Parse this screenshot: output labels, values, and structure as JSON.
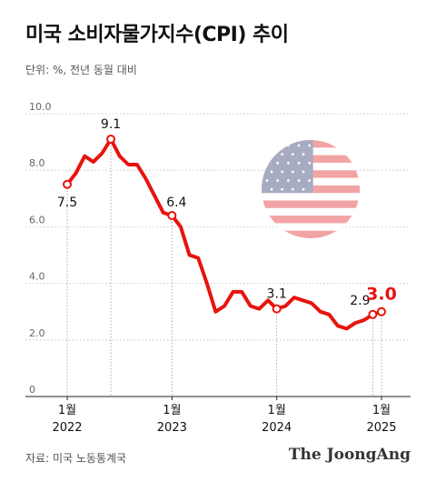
{
  "header": {
    "title": "미국 소비자물가지수(CPI) 추이",
    "unit": "단위: %, 전년 동월 대비"
  },
  "footer": {
    "source": "자료: 미국 노동통계국",
    "publisher": "The JoongAng"
  },
  "colors": {
    "line": "#e8130d",
    "grid": "#bbbbbb",
    "axis_text": "#666666",
    "flag_red": "#f2a4a4",
    "flag_blue": "#a8acc2"
  },
  "icons": [
    "us-flag-circle-icon"
  ],
  "chart_data": {
    "type": "line",
    "title": "미국 소비자물가지수(CPI) 추이",
    "xlabel": "",
    "ylabel": "",
    "ylim": [
      0,
      10
    ],
    "yticks": [
      "0",
      "2.0",
      "4.0",
      "6.0",
      "8.0",
      "10.0"
    ],
    "grid": true,
    "x_tick_labels": [
      {
        "month": "1월",
        "year": "2022"
      },
      {
        "month": "1월",
        "year": "2023"
      },
      {
        "month": "1월",
        "year": "2024"
      },
      {
        "month": "1월",
        "year": "2025"
      }
    ],
    "x": [
      "2022-01",
      "2022-02",
      "2022-03",
      "2022-04",
      "2022-05",
      "2022-06",
      "2022-07",
      "2022-08",
      "2022-09",
      "2022-10",
      "2022-11",
      "2022-12",
      "2023-01",
      "2023-02",
      "2023-03",
      "2023-04",
      "2023-05",
      "2023-06",
      "2023-07",
      "2023-08",
      "2023-09",
      "2023-10",
      "2023-11",
      "2023-12",
      "2024-01",
      "2024-02",
      "2024-03",
      "2024-04",
      "2024-05",
      "2024-06",
      "2024-07",
      "2024-08",
      "2024-09",
      "2024-10",
      "2024-11",
      "2024-12",
      "2025-01"
    ],
    "series": [
      {
        "values": [
          7.5,
          7.9,
          8.5,
          8.3,
          8.6,
          9.1,
          8.5,
          8.2,
          8.2,
          7.7,
          7.1,
          6.5,
          6.4,
          6.0,
          5.0,
          4.9,
          4.0,
          3.0,
          3.2,
          3.7,
          3.7,
          3.2,
          3.1,
          3.4,
          3.1,
          3.2,
          3.5,
          3.4,
          3.3,
          3.0,
          2.9,
          2.5,
          2.4,
          2.6,
          2.7,
          2.9,
          3.0
        ]
      }
    ],
    "annotations": [
      {
        "x": "2022-01",
        "label": "7.5"
      },
      {
        "x": "2022-06",
        "label": "9.1"
      },
      {
        "x": "2023-01",
        "label": "6.4"
      },
      {
        "x": "2024-01",
        "label": "3.1"
      },
      {
        "x": "2024-12",
        "label": "2.9"
      },
      {
        "x": "2025-01",
        "label": "3.0"
      }
    ]
  }
}
